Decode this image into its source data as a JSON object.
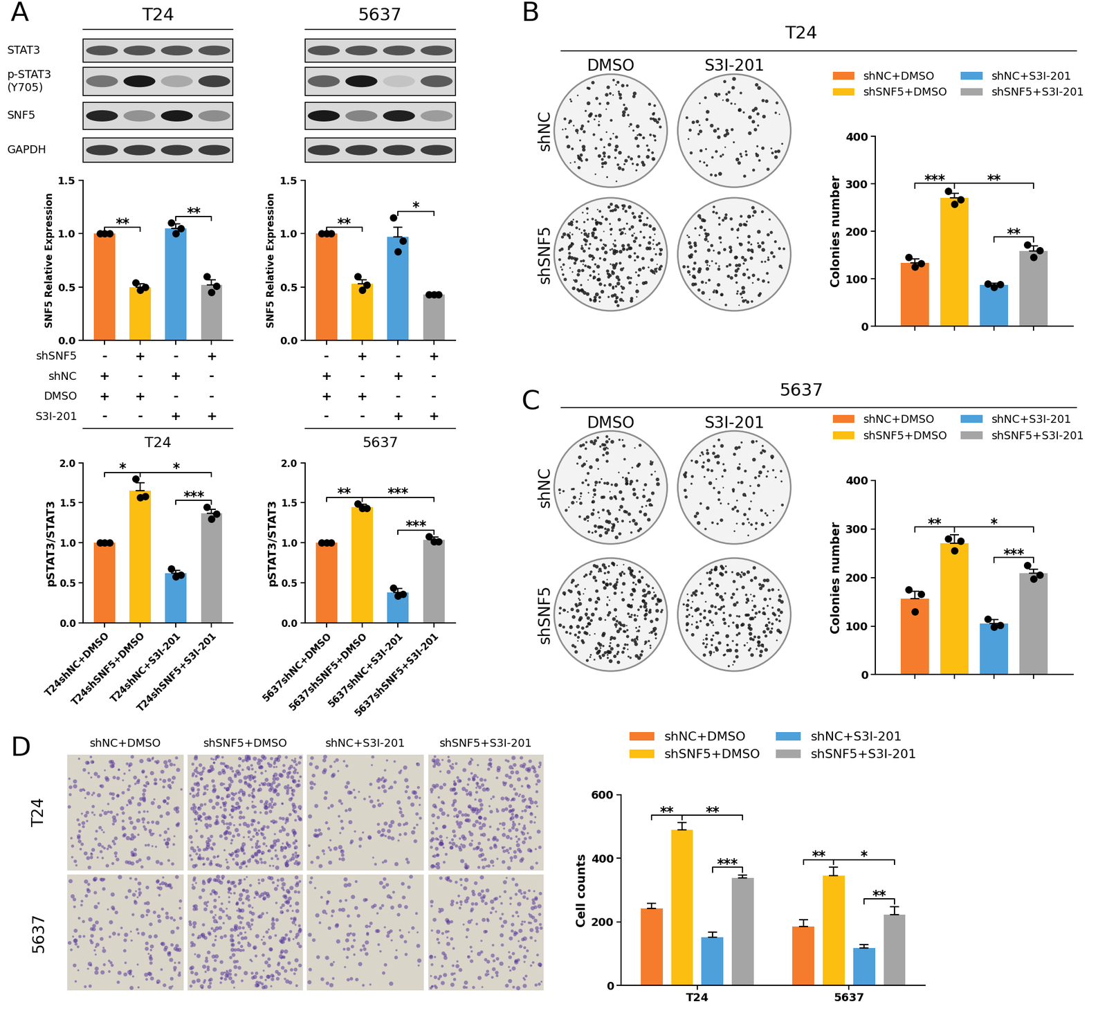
{
  "panel_labels": [
    "A",
    "B",
    "C",
    "D"
  ],
  "panel_A": {
    "cell_lines": [
      "T24",
      "5637"
    ],
    "blot_labels": [
      "STAT3",
      "p-STAT3\n(Y705)",
      "SNF5",
      "GAPDH"
    ]
  },
  "panel_B": {
    "title": "T24",
    "columns": [
      "DMSO",
      "S3I-201"
    ],
    "rows": [
      "shNC",
      "shSNF5"
    ]
  },
  "panel_C": {
    "title": "5637",
    "columns": [
      "DMSO",
      "S3I-201"
    ],
    "rows": [
      "shNC",
      "shSNF5"
    ]
  },
  "panel_D": {
    "columns": [
      "shNC+DMSO",
      "shSNF5+DMSO",
      "shNC+S3I-201",
      "shSNF5+S3I-201"
    ],
    "rows": [
      "T24",
      "5637"
    ]
  },
  "chart_data": [
    {
      "type": "bar",
      "ylabel": "SNF5 Relative Expression",
      "tick_labels": "y",
      "categories": [
        null,
        null,
        null,
        null
      ],
      "values": [
        1.0,
        0.5,
        1.05,
        0.52
      ],
      "errors": [
        0,
        0.03,
        0.04,
        0.05
      ],
      "points": [
        [
          1.0,
          1.0,
          1.0
        ],
        [
          0.54,
          0.47,
          0.5
        ],
        [
          1.1,
          1.0,
          1.05
        ],
        [
          0.6,
          0.45,
          0.51
        ]
      ],
      "colors": [
        "#F47C2C",
        "#FDBE12",
        "#4DA0DA",
        "#A5A5A5"
      ],
      "ylim": [
        0,
        1.5
      ],
      "yticks": [
        {
          "value": 0,
          "label": "0.0"
        },
        {
          "value": 0.5,
          "label": "0.5"
        },
        {
          "value": 1,
          "label": "1.0"
        },
        {
          "value": 1.5,
          "label": "1.5"
        }
      ],
      "significance": [
        {
          "from": 0,
          "to": 1,
          "label": "**"
        },
        {
          "from": 2,
          "to": 3,
          "label": "**"
        }
      ],
      "condition_table": [
        {
          "label": "shSNF5",
          "marks": [
            "-",
            "+",
            "-",
            "+"
          ]
        },
        {
          "label": "shNC",
          "marks": [
            "+",
            "-",
            "+",
            "-"
          ]
        },
        {
          "label": "DMSO",
          "marks": [
            "+",
            "+",
            "-",
            "-"
          ]
        },
        {
          "label": "S3I-201",
          "marks": [
            "-",
            "-",
            "+",
            "+"
          ]
        }
      ]
    },
    {
      "type": "bar",
      "ylabel": "SNF5 Relative Expression",
      "tick_labels": "y",
      "categories": [
        null,
        null,
        null,
        null
      ],
      "values": [
        1.0,
        0.53,
        0.97,
        0.43
      ],
      "errors": [
        0,
        0.04,
        0.09,
        0.01
      ],
      "points": [
        [
          1.0,
          1.0,
          1.0
        ],
        [
          0.6,
          0.47,
          0.52
        ],
        [
          1.15,
          0.83,
          0.93
        ],
        [
          0.43,
          0.43,
          0.43
        ]
      ],
      "colors": [
        "#F47C2C",
        "#FDBE12",
        "#4DA0DA",
        "#A5A5A5"
      ],
      "ylim": [
        0,
        1.5
      ],
      "yticks": [
        {
          "value": 0,
          "label": "0.0"
        },
        {
          "value": 0.5,
          "label": "0.5"
        },
        {
          "value": 1,
          "label": "1.0"
        },
        {
          "value": 1.5,
          "label": "1.5"
        }
      ],
      "significance": [
        {
          "from": 0,
          "to": 1,
          "label": "**"
        },
        {
          "from": 2,
          "to": 3,
          "label": "*"
        }
      ],
      "condition_table": [
        {
          "marks": [
            "-",
            "+",
            "-",
            "+"
          ]
        },
        {
          "marks": [
            "+",
            "-",
            "+",
            "-"
          ]
        },
        {
          "marks": [
            "+",
            "+",
            "-",
            "-"
          ]
        },
        {
          "marks": [
            "-",
            "-",
            "+",
            "+"
          ]
        }
      ]
    },
    {
      "type": "bar",
      "title": "T24",
      "ylabel": "pSTAT3/STAT3",
      "categories": [
        "T24shNC+DMSO",
        "T24shSNF5+DMSO",
        "T24shNC+S3I-201",
        "T24shSNF5+S3I-201"
      ],
      "values": [
        1.0,
        1.65,
        0.62,
        1.37
      ],
      "errors": [
        0,
        0.1,
        0.04,
        0.05
      ],
      "points": [
        [
          1.0,
          1.0,
          1.0
        ],
        [
          1.8,
          1.57,
          1.58
        ],
        [
          0.68,
          0.58,
          0.6
        ],
        [
          1.45,
          1.3,
          1.36
        ]
      ],
      "colors": [
        "#F47C2C",
        "#FDBE12",
        "#4DA0DA",
        "#A5A5A5"
      ],
      "ylim": [
        0,
        2
      ],
      "yticks": [
        {
          "value": 0,
          "label": "0.0"
        },
        {
          "value": 0.5,
          "label": "0.5"
        },
        {
          "value": 1,
          "label": "1.0"
        },
        {
          "value": 1.5,
          "label": "1.5"
        },
        {
          "value": 2,
          "label": "2.0"
        }
      ],
      "significance": [
        {
          "from": 0,
          "to": 1,
          "label": "*"
        },
        {
          "from": 1,
          "to": 3,
          "label": "*"
        },
        {
          "from": 2,
          "to": 3,
          "label": "***"
        }
      ]
    },
    {
      "type": "bar",
      "title": "5637",
      "ylabel": "pSTAT3/STAT3",
      "categories": [
        "5637shNC+DMSO",
        "5637shSNF5+DMSO",
        "5637shNC+S3I-201",
        "5637shSNF5+S3I-201"
      ],
      "values": [
        1.0,
        1.45,
        0.38,
        1.04
      ],
      "errors": [
        0,
        0.03,
        0.05,
        0.03
      ],
      "points": [
        [
          1.0,
          1.0,
          1.0
        ],
        [
          1.49,
          1.43,
          1.43
        ],
        [
          0.44,
          0.34,
          0.36
        ],
        [
          1.08,
          1.02,
          1.02
        ]
      ],
      "colors": [
        "#F47C2C",
        "#FDBE12",
        "#4DA0DA",
        "#A5A5A5"
      ],
      "ylim": [
        0,
        2
      ],
      "yticks": [
        {
          "value": 0,
          "label": "0.0"
        },
        {
          "value": 0.5,
          "label": "0.5"
        },
        {
          "value": 1,
          "label": "1.0"
        },
        {
          "value": 1.5,
          "label": "1.5"
        },
        {
          "value": 2,
          "label": "2.0"
        }
      ],
      "significance": [
        {
          "from": 0,
          "to": 1,
          "label": "**"
        },
        {
          "from": 1,
          "to": 3,
          "label": "***"
        },
        {
          "from": 2,
          "to": 3,
          "label": "***"
        }
      ]
    },
    {
      "type": "bar",
      "ylabel": "Colonies number",
      "legend": "above",
      "categories": [
        null
      ],
      "series": [
        {
          "name": "shNC+DMSO",
          "color": "#F47C2C",
          "values": [
            134
          ],
          "errors": [
            8
          ],
          "points": [
            [
              145,
              125,
              132
            ]
          ]
        },
        {
          "name": "shSNF5+DMSO",
          "color": "#FDBE12",
          "values": [
            270
          ],
          "errors": [
            10
          ],
          "points": [
            [
              285,
              258,
              267
            ]
          ]
        },
        {
          "name": "shNC+S3I-201",
          "color": "#4DA0DA",
          "values": [
            87
          ],
          "errors": [
            4
          ],
          "points": [
            [
              90,
              83,
              88
            ]
          ]
        },
        {
          "name": "shSNF5+S3I-201",
          "color": "#A5A5A5",
          "values": [
            159
          ],
          "errors": [
            10
          ],
          "points": [
            [
              172,
              145,
              160
            ]
          ]
        }
      ],
      "ylim": [
        0,
        400
      ],
      "yticks": [
        0,
        100,
        200,
        300,
        400
      ],
      "significance": [
        {
          "group": 0,
          "from": 0,
          "to": 1,
          "label": "***"
        },
        {
          "group": 0,
          "from": 1,
          "to": 3,
          "label": "**"
        },
        {
          "group": 0,
          "from": 2,
          "to": 3,
          "label": "**"
        }
      ]
    },
    {
      "type": "bar",
      "ylabel": "Colonies number",
      "legend": "above",
      "categories": [
        null
      ],
      "series": [
        {
          "name": "shNC+DMSO",
          "color": "#F47C2C",
          "values": [
            157
          ],
          "errors": [
            15
          ],
          "points": [
            [
              175,
              130,
              166
            ]
          ]
        },
        {
          "name": "shSNF5+DMSO",
          "color": "#FDBE12",
          "values": [
            270
          ],
          "errors": [
            18
          ],
          "points": [
            [
              280,
              255,
              275
            ]
          ]
        },
        {
          "name": "shNC+S3I-201",
          "color": "#4DA0DA",
          "values": [
            105
          ],
          "errors": [
            8
          ],
          "points": [
            [
              115,
              98,
              102
            ]
          ]
        },
        {
          "name": "shSNF5+S3I-201",
          "color": "#A5A5A5",
          "values": [
            209
          ],
          "errors": [
            8
          ],
          "points": [
            [
              225,
              197,
              205
            ]
          ]
        }
      ],
      "ylim": [
        0,
        400
      ],
      "yticks": [
        0,
        100,
        200,
        300,
        400
      ],
      "significance": [
        {
          "group": 0,
          "from": 0,
          "to": 1,
          "label": "**"
        },
        {
          "group": 0,
          "from": 1,
          "to": 3,
          "label": "*"
        },
        {
          "group": 0,
          "from": 2,
          "to": 3,
          "label": "***"
        }
      ]
    },
    {
      "type": "bar",
      "ylabel": "Cell counts",
      "legend": "above",
      "categories": [
        "T24",
        "5637"
      ],
      "series": [
        {
          "name": "shNC+DMSO",
          "color": "#F47C2C",
          "values": [
            243,
            185
          ],
          "errors": [
            16,
            22
          ]
        },
        {
          "name": "shSNF5+DMSO",
          "color": "#FDBE12",
          "values": [
            490,
            345
          ],
          "errors": [
            22,
            27
          ]
        },
        {
          "name": "shNC+S3I-201",
          "color": "#4DA0DA",
          "values": [
            152,
            117
          ],
          "errors": [
            16,
            12
          ]
        },
        {
          "name": "shSNF5+S3I-201",
          "color": "#A5A5A5",
          "values": [
            338,
            222
          ],
          "errors": [
            10,
            26
          ]
        }
      ],
      "ylim": [
        0,
        600
      ],
      "yticks": [
        0,
        200,
        400,
        600
      ],
      "significance": [
        {
          "group": 0,
          "from": 0,
          "to": 1,
          "label": "**"
        },
        {
          "group": 0,
          "from": 1,
          "to": 3,
          "label": "**"
        },
        {
          "group": 0,
          "from": 2,
          "to": 3,
          "label": "***"
        },
        {
          "group": 1,
          "from": 0,
          "to": 1,
          "label": "**"
        },
        {
          "group": 1,
          "from": 1,
          "to": 3,
          "label": "*"
        },
        {
          "group": 1,
          "from": 2,
          "to": 3,
          "label": "**"
        }
      ]
    }
  ]
}
